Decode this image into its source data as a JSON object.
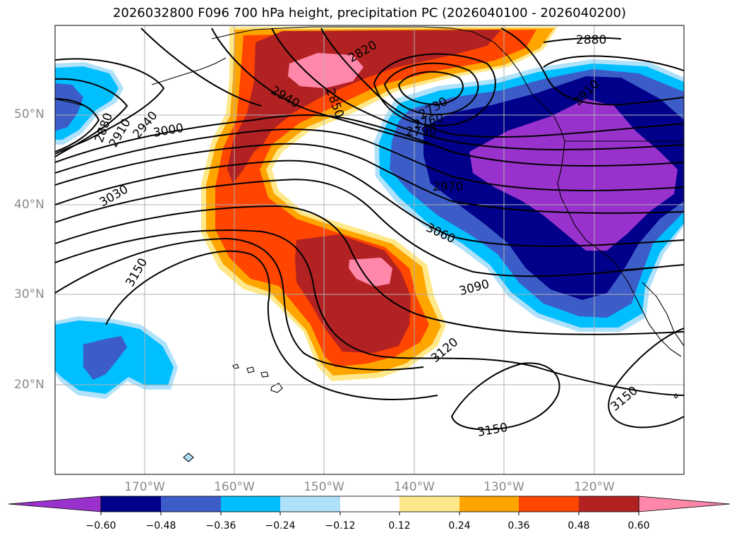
{
  "title": "2026032800 F096 700 hPa height, precipitation PC (2026040100 - 2026040200)",
  "axes": {
    "lat_labels": [
      "50°N",
      "40°N",
      "30°N",
      "20°N"
    ],
    "lon_labels": [
      "170°W",
      "160°W",
      "150°W",
      "140°W",
      "130°W",
      "120°W"
    ]
  },
  "colorbar": {
    "ticks": [
      "−0.60",
      "−0.48",
      "−0.36",
      "−0.24",
      "−0.12",
      "0.12",
      "0.24",
      "0.36",
      "0.48",
      "0.60"
    ],
    "colors": [
      "#9932cc",
      "#00008b",
      "#3c5cc8",
      "#00bfff",
      "#afe1fa",
      "#ffffff",
      "#ffe88a",
      "#ffa500",
      "#ff4500",
      "#b22222",
      "#ff88aa"
    ],
    "extend": "both"
  },
  "contour_labels": [
    "2820",
    "2850",
    "2880",
    "2880",
    "2910",
    "2910",
    "2940",
    "2940",
    "2730",
    "2760",
    "2790",
    "3000",
    "3030",
    "2970",
    "3060",
    "3090",
    "3120",
    "3150",
    "3150",
    "3150"
  ],
  "map_data": {
    "field": "700 hPa geopotential height (m) contours with precipitation PC shading",
    "region": "North Pacific and western North America",
    "lon_range": [
      -180,
      -110
    ],
    "lat_range": [
      10,
      60
    ]
  }
}
